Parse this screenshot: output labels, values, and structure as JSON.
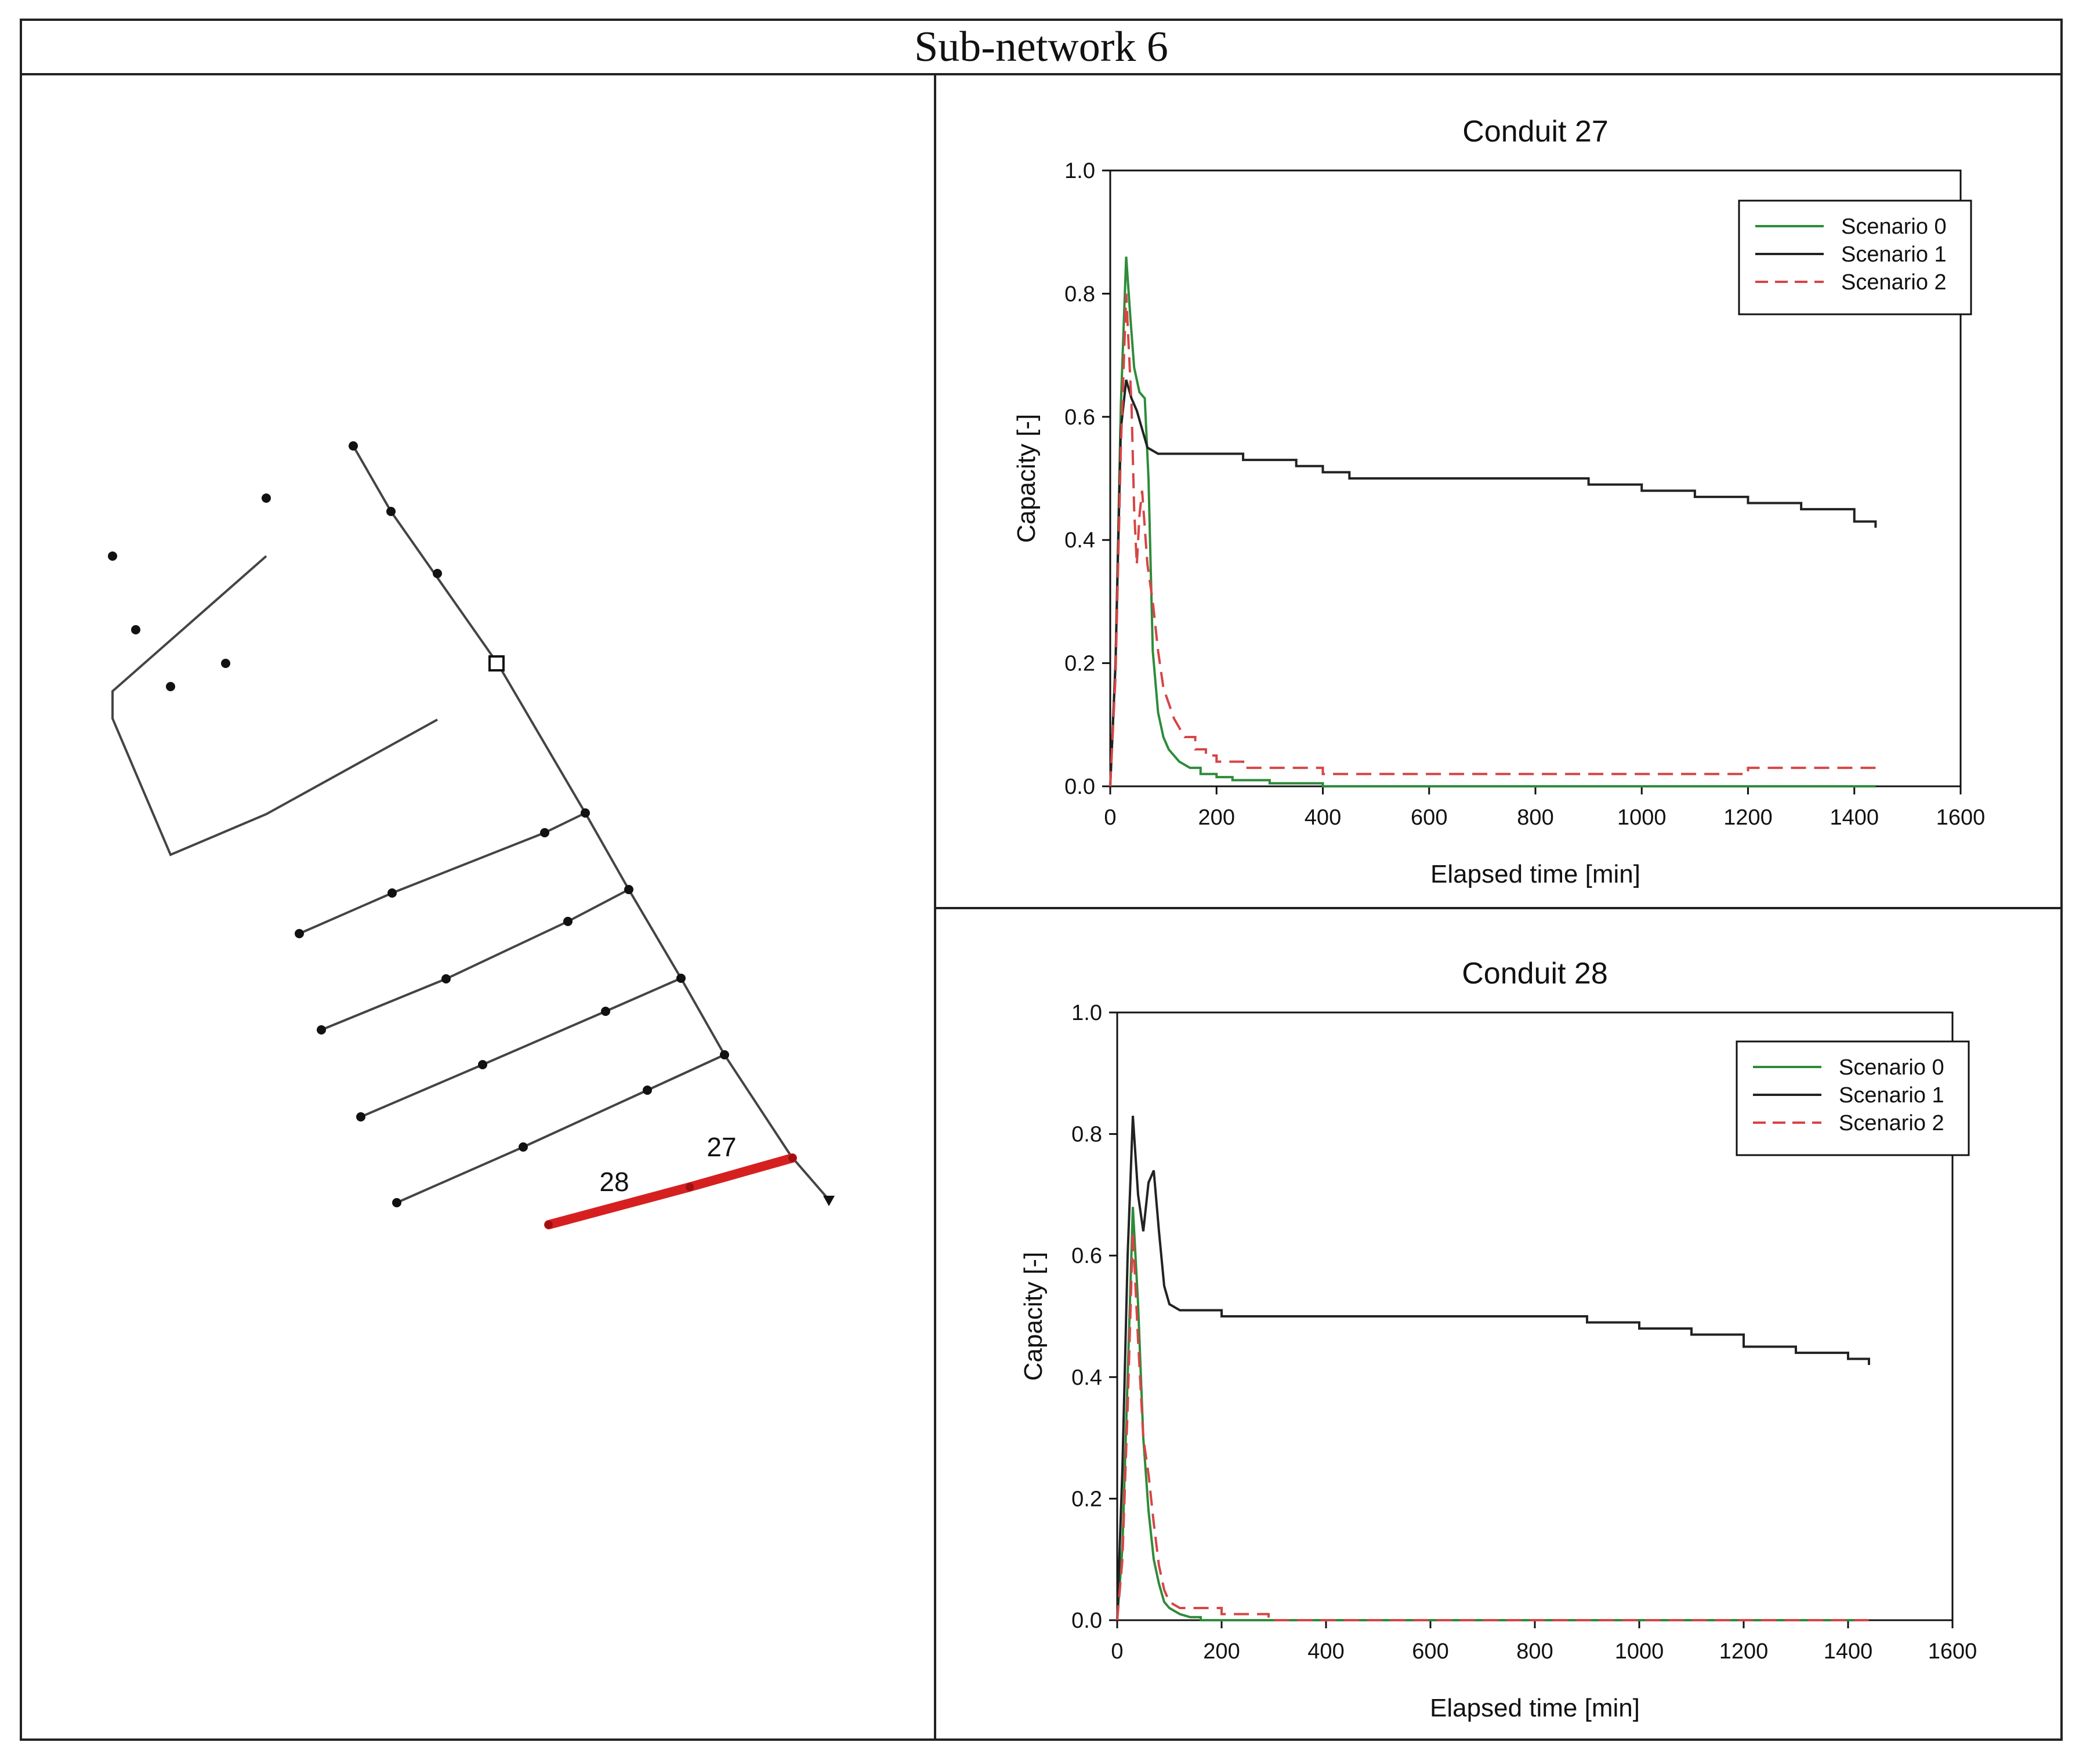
{
  "figure_title": "Sub-network 6",
  "network_map": {
    "labels": {
      "conduit_a": "28",
      "conduit_b": "27"
    },
    "highlight_color": "#d62020"
  },
  "chart_data": [
    {
      "type": "line",
      "title": "Conduit 27",
      "xlabel": "Elapsed time [min]",
      "ylabel": "Capacity [-]",
      "xlim": [
        0,
        1600
      ],
      "ylim": [
        0,
        1.0
      ],
      "xticks": [
        "0",
        "200",
        "400",
        "600",
        "800",
        "1000",
        "1200",
        "1400",
        "1600"
      ],
      "yticks": [
        "0.0",
        "0.2",
        "0.4",
        "0.6",
        "0.8",
        "1.0"
      ],
      "legend_position": "top-right",
      "series": [
        {
          "name": "Scenario 0",
          "color": "#2e8b3a",
          "dash": "solid",
          "x": [
            0,
            10,
            20,
            30,
            38,
            45,
            55,
            65,
            72,
            80,
            90,
            100,
            110,
            130,
            150,
            170,
            200,
            230,
            300,
            400,
            600,
            1000,
            1440
          ],
          "y": [
            0,
            0.2,
            0.62,
            0.86,
            0.76,
            0.68,
            0.64,
            0.63,
            0.5,
            0.22,
            0.12,
            0.08,
            0.06,
            0.04,
            0.03,
            0.02,
            0.015,
            0.01,
            0.005,
            0.0,
            0.0,
            0.0,
            0.0
          ]
        },
        {
          "name": "Scenario 1",
          "color": "#222222",
          "dash": "solid",
          "x": [
            0,
            10,
            20,
            30,
            40,
            50,
            60,
            70,
            90,
            150,
            250,
            350,
            400,
            450,
            700,
            900,
            1000,
            1100,
            1200,
            1300,
            1400,
            1440
          ],
          "y": [
            0,
            0.2,
            0.58,
            0.66,
            0.63,
            0.61,
            0.58,
            0.55,
            0.54,
            0.54,
            0.53,
            0.52,
            0.51,
            0.5,
            0.5,
            0.49,
            0.48,
            0.47,
            0.46,
            0.45,
            0.43,
            0.42
          ]
        },
        {
          "name": "Scenario 2",
          "color": "#d64545",
          "dash": "dashed",
          "x": [
            0,
            10,
            20,
            30,
            40,
            45,
            50,
            55,
            60,
            65,
            70,
            80,
            90,
            100,
            120,
            140,
            160,
            180,
            200,
            250,
            380,
            400,
            1200,
            1440
          ],
          "y": [
            0,
            0.18,
            0.55,
            0.8,
            0.62,
            0.45,
            0.36,
            0.44,
            0.48,
            0.42,
            0.36,
            0.3,
            0.22,
            0.16,
            0.11,
            0.08,
            0.06,
            0.05,
            0.04,
            0.03,
            0.03,
            0.02,
            0.03,
            0.03
          ]
        }
      ]
    },
    {
      "type": "line",
      "title": "Conduit 28",
      "xlabel": "Elapsed time [min]",
      "ylabel": "Capacity [-]",
      "xlim": [
        0,
        1600
      ],
      "ylim": [
        0,
        1.0
      ],
      "xticks": [
        "0",
        "200",
        "400",
        "600",
        "800",
        "1000",
        "1200",
        "1400",
        "1600"
      ],
      "yticks": [
        "0.0",
        "0.2",
        "0.4",
        "0.6",
        "0.8",
        "1.0"
      ],
      "legend_position": "top-right",
      "series": [
        {
          "name": "Scenario 0",
          "color": "#2e8b3a",
          "dash": "solid",
          "x": [
            0,
            10,
            20,
            30,
            40,
            50,
            60,
            70,
            80,
            90,
            100,
            120,
            140,
            160,
            200,
            1440
          ],
          "y": [
            0,
            0.12,
            0.4,
            0.68,
            0.52,
            0.3,
            0.18,
            0.1,
            0.06,
            0.03,
            0.02,
            0.01,
            0.005,
            0.0,
            0.0,
            0.0
          ]
        },
        {
          "name": "Scenario 1",
          "color": "#222222",
          "dash": "solid",
          "x": [
            0,
            10,
            20,
            30,
            40,
            50,
            60,
            70,
            80,
            90,
            100,
            120,
            150,
            200,
            400,
            600,
            800,
            900,
            1000,
            1100,
            1200,
            1300,
            1400,
            1440
          ],
          "y": [
            0,
            0.25,
            0.6,
            0.83,
            0.7,
            0.64,
            0.72,
            0.74,
            0.64,
            0.55,
            0.52,
            0.51,
            0.51,
            0.5,
            0.5,
            0.5,
            0.5,
            0.49,
            0.48,
            0.47,
            0.45,
            0.44,
            0.43,
            0.42
          ]
        },
        {
          "name": "Scenario 2",
          "color": "#d64545",
          "dash": "dashed",
          "x": [
            0,
            10,
            20,
            30,
            40,
            50,
            60,
            70,
            80,
            90,
            100,
            120,
            150,
            200,
            280,
            290,
            1440
          ],
          "y": [
            0,
            0.1,
            0.35,
            0.64,
            0.46,
            0.3,
            0.24,
            0.16,
            0.09,
            0.05,
            0.03,
            0.02,
            0.02,
            0.01,
            0.01,
            0.0,
            0.0
          ]
        }
      ]
    }
  ]
}
